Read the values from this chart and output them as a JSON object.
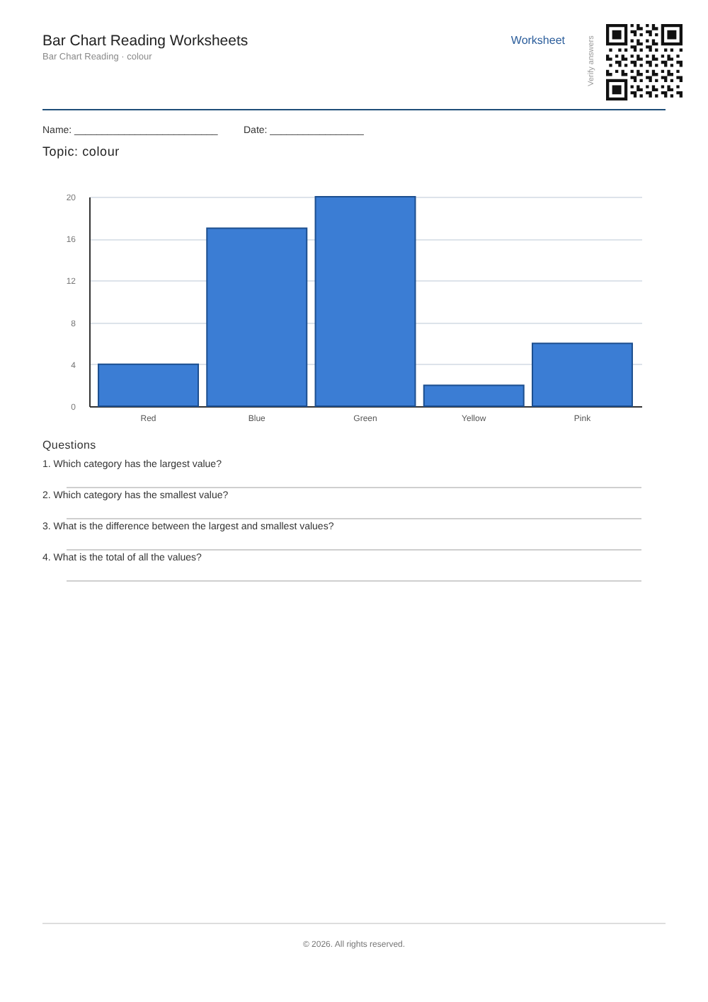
{
  "chart_data": {
    "type": "bar",
    "title": "Bar Chart Reading Worksheets",
    "subtitle": "Bar Chart Reading · colour",
    "categories": [
      "Red",
      "Blue",
      "Green",
      "Yellow",
      "Pink"
    ],
    "values": [
      4,
      17,
      20,
      2,
      6
    ],
    "color": "#3b7dd4",
    "ylim": [
      0,
      20
    ],
    "yticks": [
      0,
      4,
      8,
      12,
      16,
      20
    ],
    "grid": "y",
    "annotations": [
      "Worksheet",
      "Verify answers",
      "Name: __________________________",
      "Date: _________________",
      "Topic: colour",
      "Questions",
      "1. Which category has the largest value?",
      "2. Which category has the smallest value?",
      "3. What is the difference between the largest and smallest values?",
      "4. What is the total of all the values?",
      "© 2026. All rights reserved."
    ]
  }
}
